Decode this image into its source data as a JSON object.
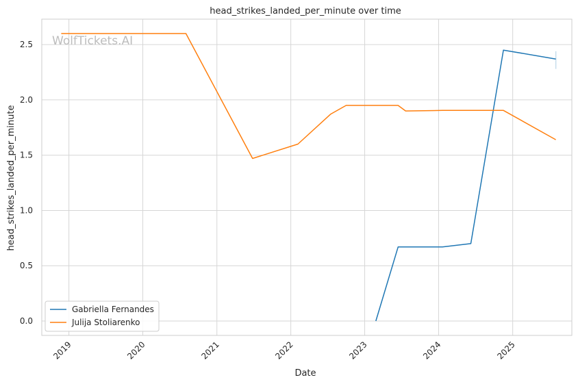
{
  "chart_data": {
    "type": "line",
    "title": "head_strikes_landed_per_minute over time",
    "xlabel": "Date",
    "ylabel": "head_strikes_landed_per_minute",
    "x_type": "date",
    "xlim": [
      "2018-08-20",
      "2025-10-20"
    ],
    "ylim": [
      -0.13,
      2.73
    ],
    "x_ticks": [
      {
        "date": "2019-01-01",
        "label": "2019"
      },
      {
        "date": "2020-01-01",
        "label": "2020"
      },
      {
        "date": "2021-01-01",
        "label": "2021"
      },
      {
        "date": "2022-01-01",
        "label": "2022"
      },
      {
        "date": "2023-01-01",
        "label": "2023"
      },
      {
        "date": "2024-01-01",
        "label": "2024"
      },
      {
        "date": "2025-01-01",
        "label": "2025"
      }
    ],
    "y_ticks": [
      {
        "value": 0.0,
        "label": "0.0"
      },
      {
        "value": 0.5,
        "label": "0.5"
      },
      {
        "value": 1.0,
        "label": "1.0"
      },
      {
        "value": 1.5,
        "label": "1.5"
      },
      {
        "value": 2.0,
        "label": "2.0"
      },
      {
        "value": 2.5,
        "label": "2.5"
      }
    ],
    "grid": true,
    "legend_position": "lower-left",
    "series": [
      {
        "name": "Gabriella Fernandes",
        "color": "#1f77b4",
        "points": [
          {
            "x": "2023-02-25",
            "y": 0.0
          },
          {
            "x": "2023-06-15",
            "y": 0.67
          },
          {
            "x": "2024-01-20",
            "y": 0.67
          },
          {
            "x": "2024-06-08",
            "y": 0.7
          },
          {
            "x": "2024-11-16",
            "y": 2.45
          },
          {
            "x": "2025-08-02",
            "y": 2.37
          }
        ],
        "error_bar": {
          "x": "2025-08-02",
          "low": 2.28,
          "high": 2.44
        }
      },
      {
        "name": "Julija Stoliarenko",
        "color": "#ff7f0e",
        "points": [
          {
            "x": "2018-11-24",
            "y": 2.6
          },
          {
            "x": "2020-08-01",
            "y": 2.6
          },
          {
            "x": "2021-06-26",
            "y": 1.47
          },
          {
            "x": "2022-02-05",
            "y": 1.6
          },
          {
            "x": "2022-07-16",
            "y": 1.87
          },
          {
            "x": "2022-10-01",
            "y": 1.95
          },
          {
            "x": "2023-06-15",
            "y": 1.95
          },
          {
            "x": "2023-07-22",
            "y": 1.9
          },
          {
            "x": "2024-01-20",
            "y": 1.905
          },
          {
            "x": "2024-11-16",
            "y": 1.905
          },
          {
            "x": "2025-08-02",
            "y": 1.64
          }
        ]
      }
    ]
  },
  "watermark": "WolfTickets.AI"
}
